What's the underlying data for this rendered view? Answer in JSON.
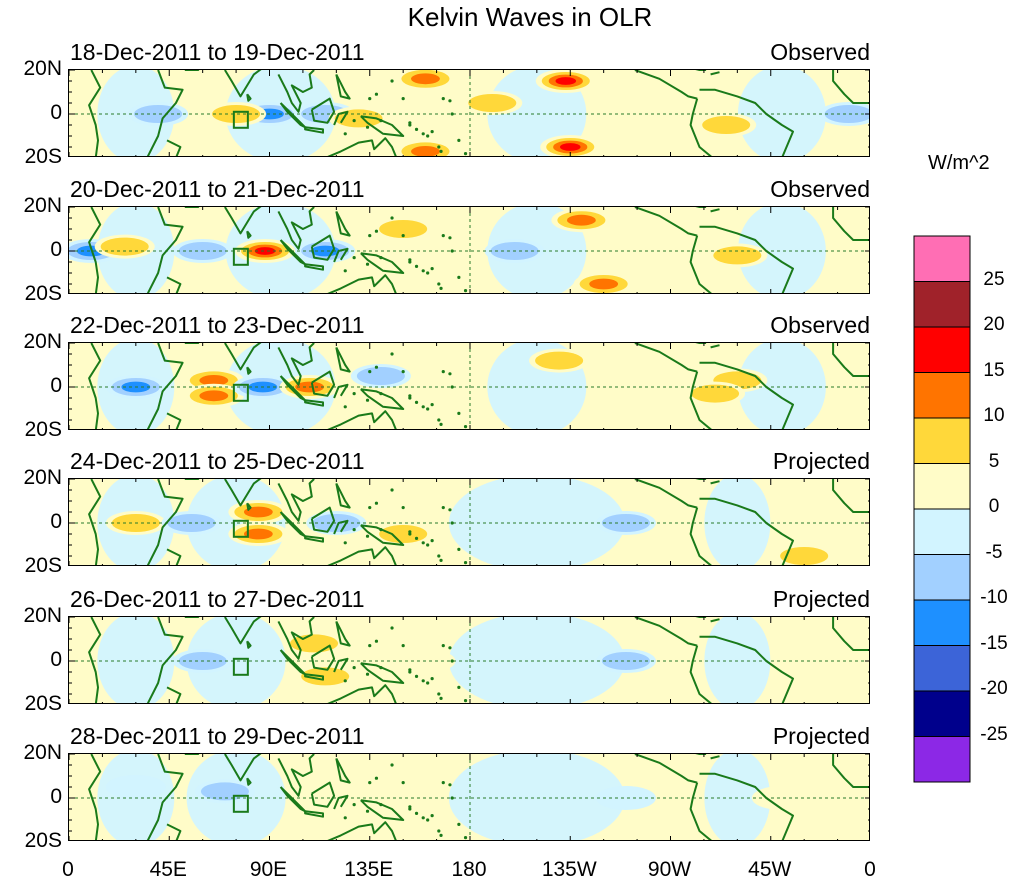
{
  "title": "Kelvin Waves in OLR",
  "units": "W/m^2",
  "lat_labels": [
    "20N",
    "0",
    "20S"
  ],
  "lon_labels": [
    "0",
    "45E",
    "90E",
    "135E",
    "180",
    "135W",
    "90W",
    "45W",
    "0"
  ],
  "panels": [
    {
      "date": "18-Dec-2011 to 19-Dec-2011",
      "kind": "Observed"
    },
    {
      "date": "20-Dec-2011 to 21-Dec-2011",
      "kind": "Observed"
    },
    {
      "date": "22-Dec-2011 to 23-Dec-2011",
      "kind": "Observed"
    },
    {
      "date": "24-Dec-2011 to 25-Dec-2011",
      "kind": "Projected"
    },
    {
      "date": "26-Dec-2011 to 27-Dec-2011",
      "kind": "Projected"
    },
    {
      "date": "28-Dec-2011 to 29-Dec-2011",
      "kind": "Projected"
    }
  ],
  "colorbar": {
    "labels": [
      "25",
      "20",
      "15",
      "10",
      "5",
      "0",
      "-5",
      "-10",
      "-15",
      "-20",
      "-25"
    ],
    "colors": [
      "#ff6eb4",
      "#a0222a",
      "#ff0000",
      "#ff7400",
      "#ffd83a",
      "#fffcc8",
      "#d2f4ff",
      "#a2d0ff",
      "#1e90ff",
      "#3c64d8",
      "#00008c",
      "#8c28e6"
    ]
  },
  "anomaly_features": [
    [
      {
        "lon": 160,
        "lat": 16,
        "v": 12
      },
      {
        "lon": 223,
        "lat": 15,
        "v": 15
      },
      {
        "lon": 225,
        "lat": -15,
        "v": 15
      },
      {
        "lon": 160,
        "lat": -17,
        "v": 10
      },
      {
        "lon": 90,
        "lat": 0,
        "v": -12
      },
      {
        "lon": 75,
        "lat": 0,
        "v": 7
      },
      {
        "lon": 40,
        "lat": 0,
        "v": -6
      },
      {
        "lon": 115,
        "lat": 0,
        "v": -8
      },
      {
        "lon": 190,
        "lat": 5,
        "v": 5
      },
      {
        "lon": 295,
        "lat": -5,
        "v": 5
      },
      {
        "lon": 350,
        "lat": 0,
        "v": -5
      },
      {
        "lon": 130,
        "lat": -2,
        "v": 7
      }
    ],
    [
      {
        "lon": 88,
        "lat": 0,
        "v": 15
      },
      {
        "lon": 115,
        "lat": 0,
        "v": -12
      },
      {
        "lon": 10,
        "lat": 0,
        "v": -12
      },
      {
        "lon": 150,
        "lat": 10,
        "v": 6
      },
      {
        "lon": 230,
        "lat": 14,
        "v": 10
      },
      {
        "lon": 240,
        "lat": -15,
        "v": 10
      },
      {
        "lon": 60,
        "lat": 0,
        "v": -6
      },
      {
        "lon": 300,
        "lat": -2,
        "v": 6
      },
      {
        "lon": 200,
        "lat": 0,
        "v": -6
      },
      {
        "lon": 25,
        "lat": 2,
        "v": 5
      }
    ],
    [
      {
        "lon": 65,
        "lat": 3,
        "v": 12
      },
      {
        "lon": 65,
        "lat": -4,
        "v": 10
      },
      {
        "lon": 87,
        "lat": 0,
        "v": -12
      },
      {
        "lon": 30,
        "lat": 0,
        "v": -12
      },
      {
        "lon": 108,
        "lat": 0,
        "v": 10
      },
      {
        "lon": 140,
        "lat": 5,
        "v": -6
      },
      {
        "lon": 220,
        "lat": 12,
        "v": 5
      },
      {
        "lon": 300,
        "lat": 3,
        "v": 8
      },
      {
        "lon": 290,
        "lat": -3,
        "v": 5
      }
    ],
    [
      {
        "lon": 85,
        "lat": 5,
        "v": 12
      },
      {
        "lon": 85,
        "lat": -5,
        "v": 12
      },
      {
        "lon": 120,
        "lat": 0,
        "v": -7
      },
      {
        "lon": 30,
        "lat": 0,
        "v": 5
      },
      {
        "lon": 55,
        "lat": 0,
        "v": -5
      },
      {
        "lon": 150,
        "lat": -5,
        "v": 5
      },
      {
        "lon": 330,
        "lat": -15,
        "v": 6
      },
      {
        "lon": 250,
        "lat": 0,
        "v": -5
      }
    ],
    [
      {
        "lon": 110,
        "lat": 8,
        "v": 6
      },
      {
        "lon": 115,
        "lat": -7,
        "v": 7
      },
      {
        "lon": 60,
        "lat": 0,
        "v": -5
      },
      {
        "lon": 160,
        "lat": 0,
        "v": 4
      },
      {
        "lon": 250,
        "lat": 0,
        "v": -5
      }
    ],
    [
      {
        "lon": 140,
        "lat": 0,
        "v": 4
      },
      {
        "lon": 70,
        "lat": 3,
        "v": -5
      },
      {
        "lon": 250,
        "lat": 0,
        "v": -4
      },
      {
        "lon": 320,
        "lat": 0,
        "v": 3
      },
      {
        "lon": 30,
        "lat": 5,
        "v": -4
      }
    ]
  ]
}
